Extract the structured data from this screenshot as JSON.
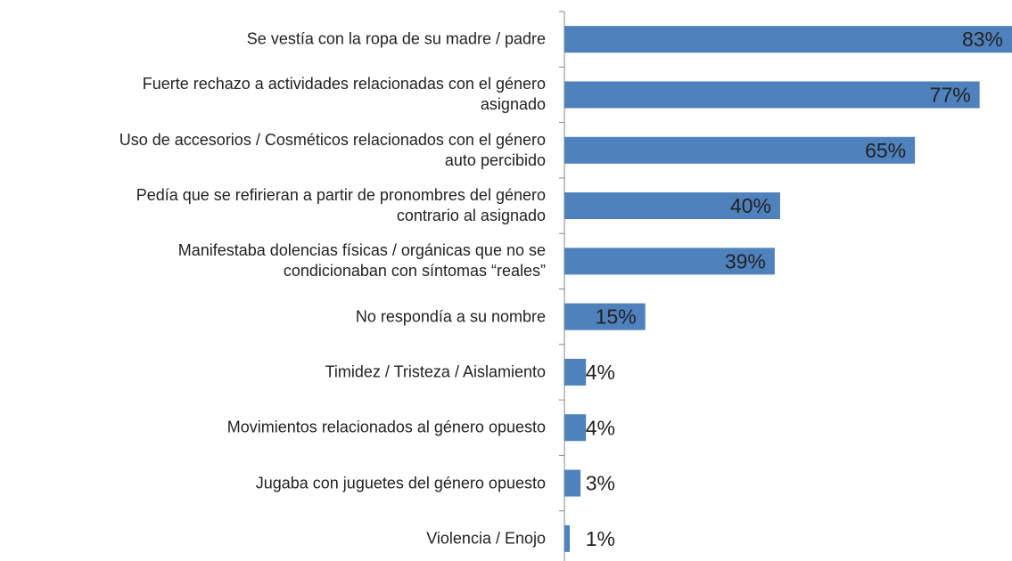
{
  "chart_data": {
    "type": "bar",
    "orientation": "horizontal",
    "categories": [
      "Se vestía con la ropa de su madre / padre",
      "Fuerte rechazo a actividades relacionadas con el género\nasignado",
      "Uso de accesorios / Cosméticos relacionados con el género\nauto percibido",
      "Pedía que se refirieran a partir de pronombres del género\ncontrario al asignado",
      "Manifestaba dolencias físicas / orgánicas que no se\ncondicionaban con síntomas “reales”",
      "No respondía a su nombre",
      "Timidez / Tristeza / Aislamiento",
      "Movimientos relacionados al género opuesto",
      "Jugaba con juguetes del género opuesto",
      "Violencia / Enojo"
    ],
    "values": [
      83,
      77,
      65,
      40,
      39,
      15,
      4,
      4,
      3,
      1
    ],
    "value_labels": [
      "83%",
      "77%",
      "65%",
      "40%",
      "39%",
      "15%",
      "4%",
      "4%",
      "3%",
      "1%"
    ],
    "color": "#4f81bd",
    "xlim": [
      0,
      83
    ]
  }
}
